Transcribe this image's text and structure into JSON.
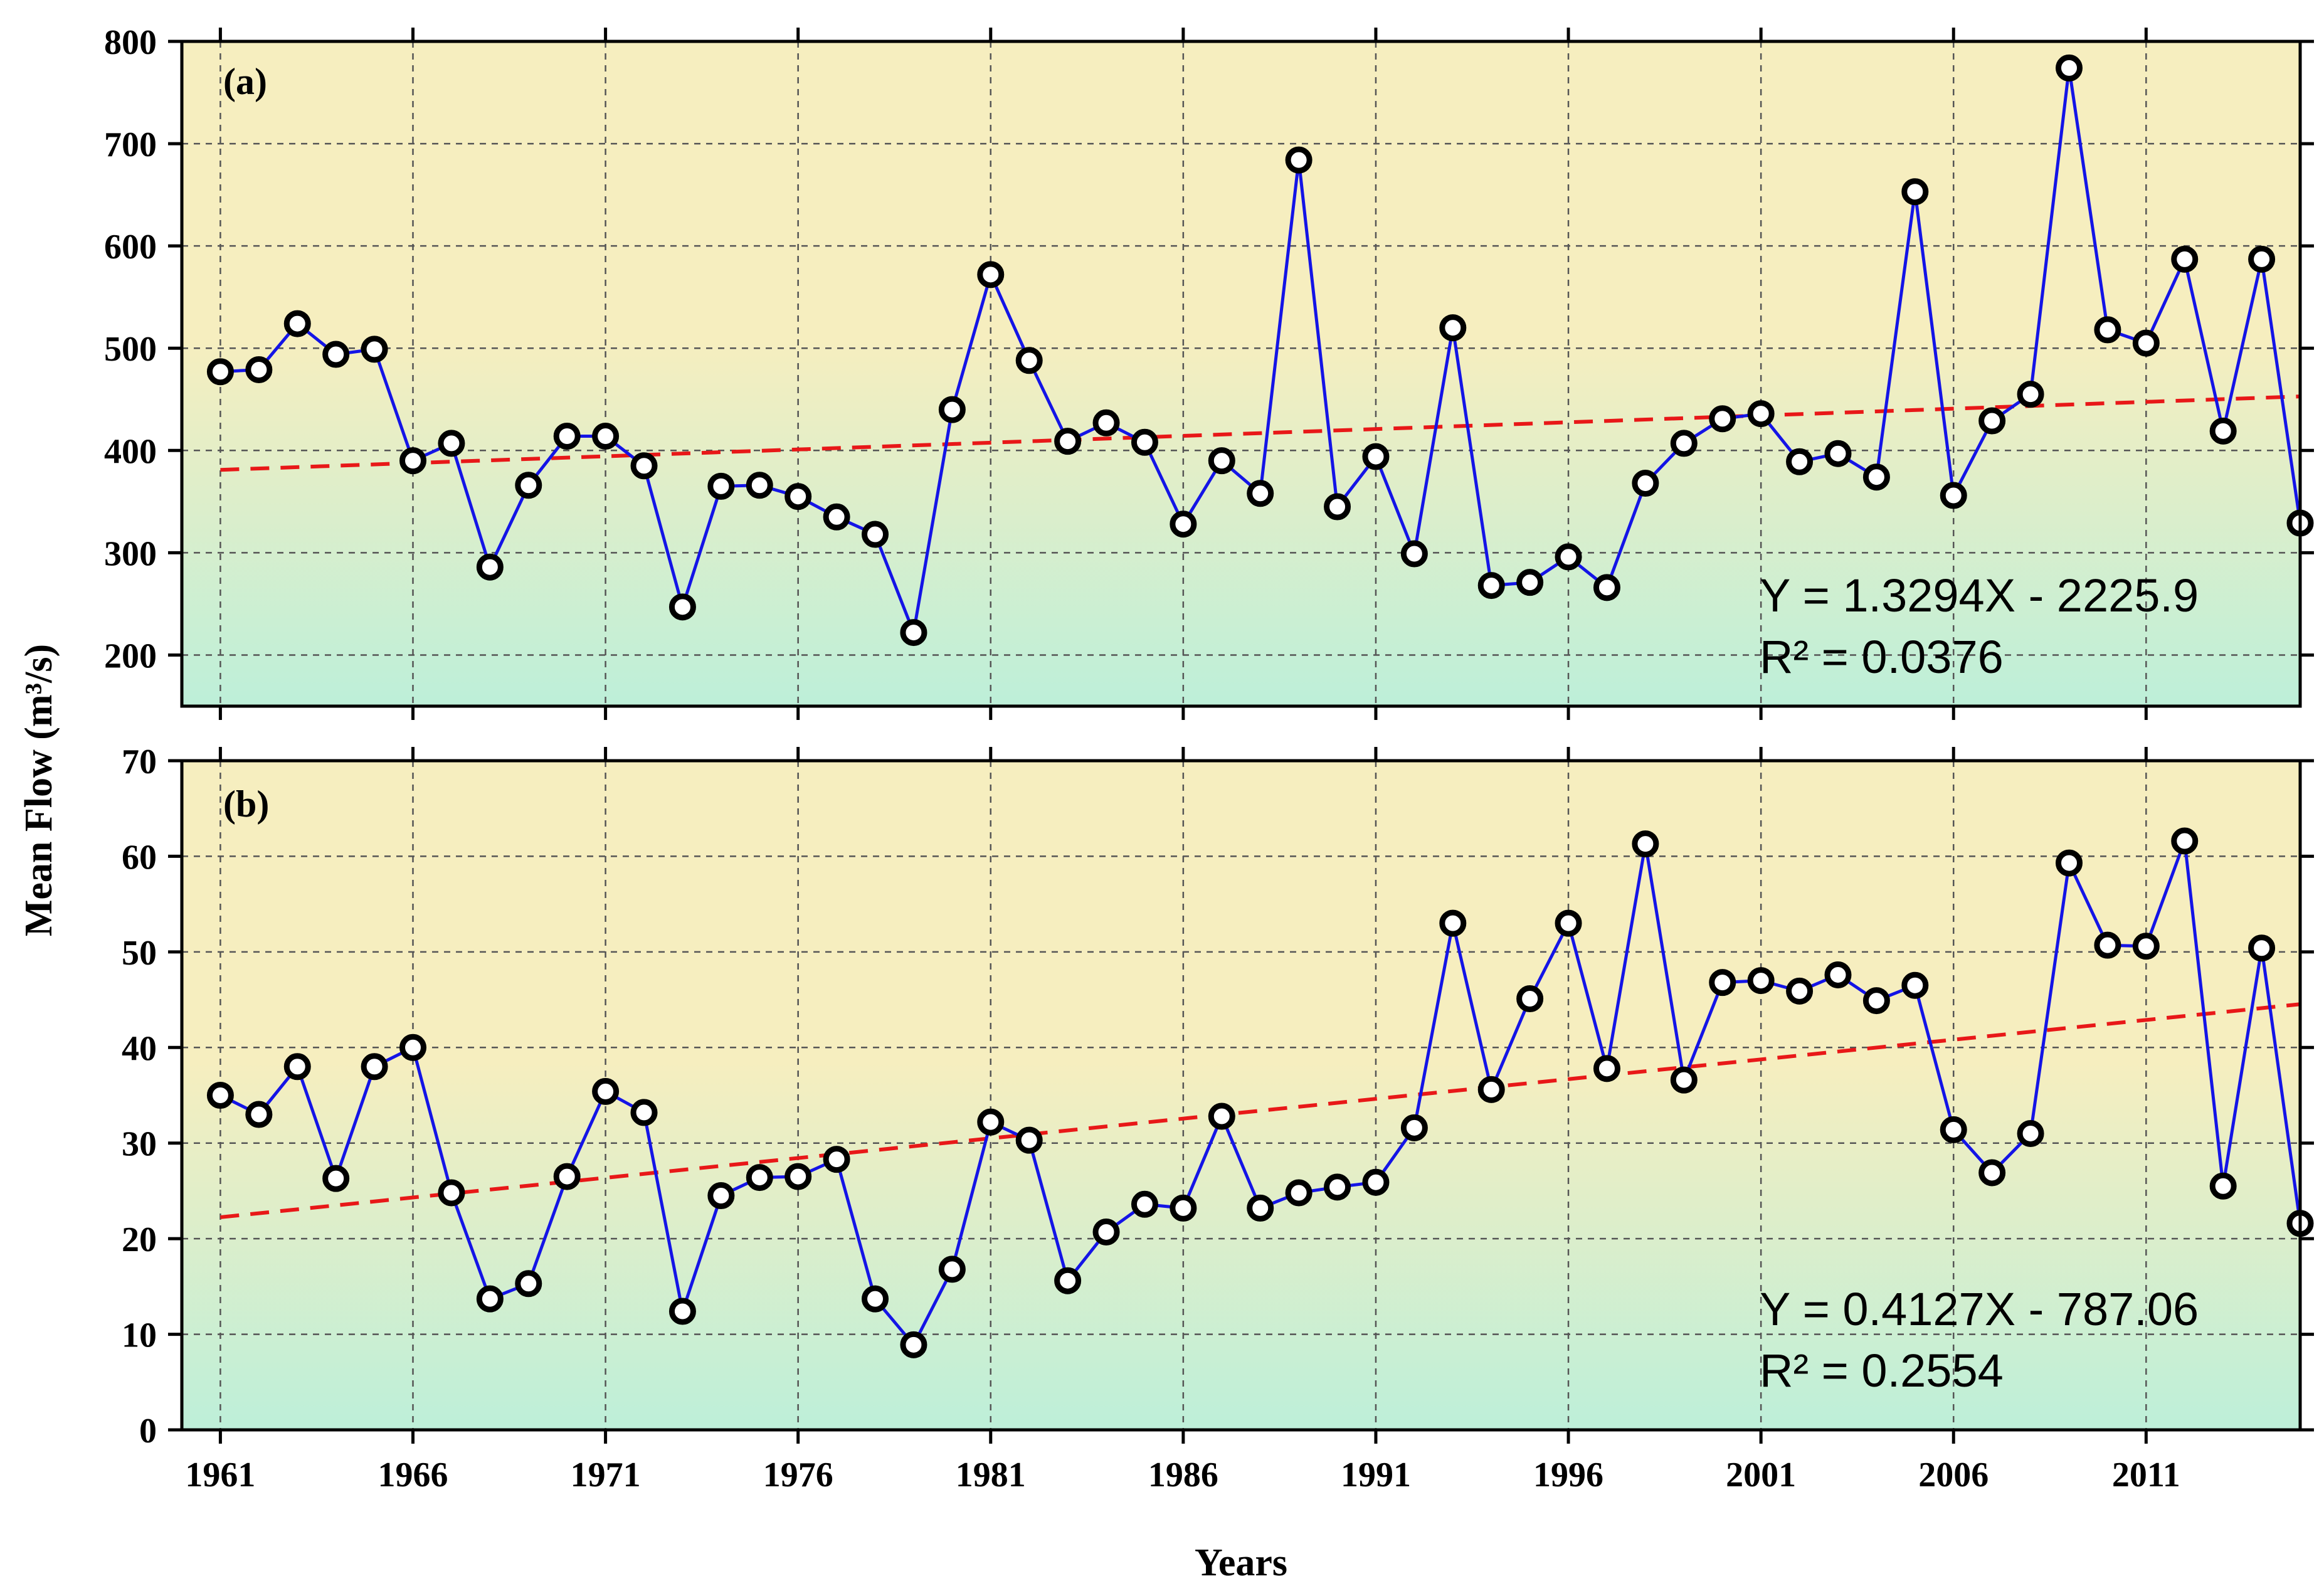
{
  "colors": {
    "bg_top": "#f6eebf",
    "bg_bottom": "#bdefd9",
    "series_line": "#1414e6",
    "trend_line": "#e81818",
    "grid": "#555555",
    "marker_edge": "#000000",
    "marker_fill": "#ffffff"
  },
  "chart_data": [
    {
      "type": "line",
      "panel_label": "(a)",
      "xlabel": "Years",
      "ylabel": "Mean Flow (m³/s)",
      "xlim": [
        1960,
        2015
      ],
      "ylim": [
        150,
        800
      ],
      "yticks": [
        200,
        300,
        400,
        500,
        600,
        700,
        800
      ],
      "xticks": [
        1961,
        1966,
        1971,
        1976,
        1981,
        1986,
        1991,
        1996,
        2001,
        2006,
        2011
      ],
      "x": [
        1961,
        1962,
        1963,
        1964,
        1965,
        1966,
        1967,
        1968,
        1969,
        1970,
        1971,
        1972,
        1973,
        1974,
        1975,
        1976,
        1977,
        1978,
        1979,
        1980,
        1981,
        1982,
        1983,
        1984,
        1985,
        1986,
        1987,
        1988,
        1989,
        1990,
        1991,
        1992,
        1993,
        1994,
        1995,
        1996,
        1997,
        1998,
        1999,
        2000,
        2001,
        2002,
        2003,
        2004,
        2005,
        2006,
        2007,
        2008,
        2009,
        2010,
        2011,
        2012,
        2013,
        2014,
        2015
      ],
      "values": [
        477,
        479,
        524,
        494,
        499,
        390,
        407,
        286,
        366,
        414,
        414,
        385,
        247,
        365,
        366,
        355,
        335,
        318,
        222,
        440,
        572,
        488,
        409,
        427,
        408,
        328,
        390,
        358,
        684,
        345,
        394,
        299,
        520,
        268,
        271,
        296,
        266,
        368,
        407,
        431,
        436,
        389,
        397,
        374,
        653,
        356,
        429,
        455,
        774,
        518,
        505,
        587,
        419,
        587,
        329
      ],
      "trend": {
        "slope": 1.3294,
        "intercept": -2225.9
      },
      "equation": "Y = 1.3294X - 2225.9",
      "r_squared": "R² = 0.0376"
    },
    {
      "type": "line",
      "panel_label": "(b)",
      "xlabel": "Years",
      "ylabel": "Mean Flow (m³/s)",
      "xlim": [
        1960,
        2015
      ],
      "ylim": [
        0,
        70
      ],
      "yticks": [
        0,
        10,
        20,
        30,
        40,
        50,
        60,
        70
      ],
      "xticks": [
        1961,
        1966,
        1971,
        1976,
        1981,
        1986,
        1991,
        1996,
        2001,
        2006,
        2011
      ],
      "x": [
        1961,
        1962,
        1963,
        1964,
        1965,
        1966,
        1967,
        1968,
        1969,
        1970,
        1971,
        1972,
        1973,
        1974,
        1975,
        1976,
        1977,
        1978,
        1979,
        1980,
        1981,
        1982,
        1983,
        1984,
        1985,
        1986,
        1987,
        1988,
        1989,
        1990,
        1991,
        1992,
        1993,
        1994,
        1995,
        1996,
        1997,
        1998,
        1999,
        2000,
        2001,
        2002,
        2003,
        2004,
        2005,
        2006,
        2007,
        2008,
        2009,
        2010,
        2011,
        2012,
        2013,
        2014,
        2015
      ],
      "values": [
        35.0,
        33.0,
        38.0,
        26.3,
        38.0,
        40.0,
        24.8,
        13.7,
        15.3,
        26.5,
        35.4,
        33.2,
        12.4,
        24.5,
        26.4,
        26.5,
        28.3,
        13.7,
        8.9,
        16.8,
        32.2,
        30.3,
        15.6,
        20.7,
        23.6,
        23.2,
        32.8,
        23.2,
        24.8,
        25.4,
        25.9,
        31.6,
        53.0,
        35.6,
        45.1,
        53.0,
        37.8,
        61.3,
        36.6,
        46.8,
        47.0,
        45.9,
        47.6,
        44.9,
        46.5,
        31.4,
        26.9,
        31.0,
        59.3,
        50.7,
        50.6,
        61.6,
        25.5,
        50.4,
        21.6
      ],
      "trend": {
        "slope": 0.4127,
        "intercept": -787.06
      },
      "equation": "Y = 0.4127X - 787.06",
      "r_squared": "R² = 0.2554"
    }
  ]
}
